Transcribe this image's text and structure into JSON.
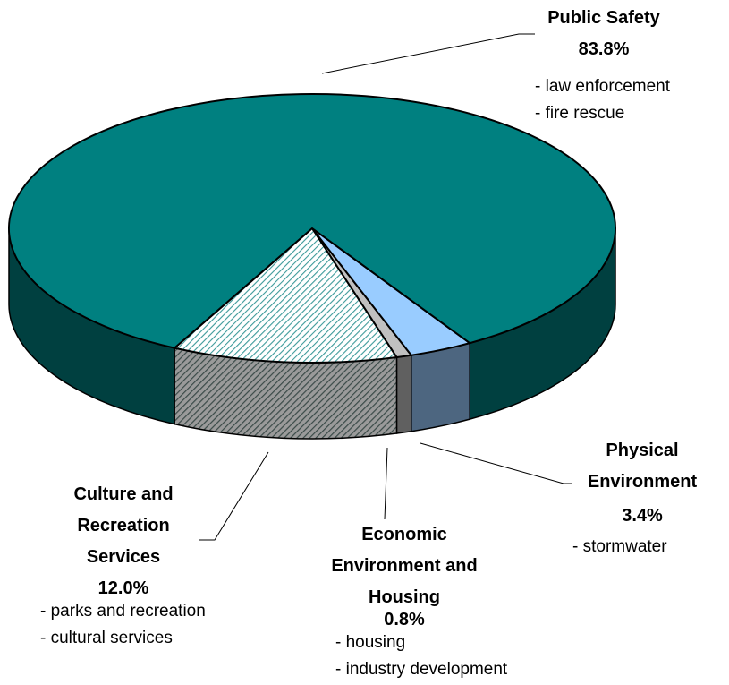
{
  "chart_data": {
    "type": "pie3d",
    "categories": [
      "Culture and Recreation Services",
      "Economic Environment and Housing",
      "Physical Environment",
      "Public Safety"
    ],
    "values": [
      12.0,
      0.8,
      3.4,
      83.8
    ],
    "value_labels": [
      "12.0%",
      "0.8%",
      "3.4%",
      "83.8%"
    ],
    "colors": [
      "#7fbfbf",
      "#c0c0c0",
      "#99ccff",
      "#008080"
    ],
    "patterns": [
      "diagonal",
      "solid",
      "solid",
      "solid"
    ],
    "details": [
      [
        "- parks and recreation",
        "- cultural services"
      ],
      [
        "- housing",
        "- industry development"
      ],
      [
        "- stormwater"
      ],
      [
        "- law enforcement",
        "- fire rescue"
      ]
    ]
  }
}
